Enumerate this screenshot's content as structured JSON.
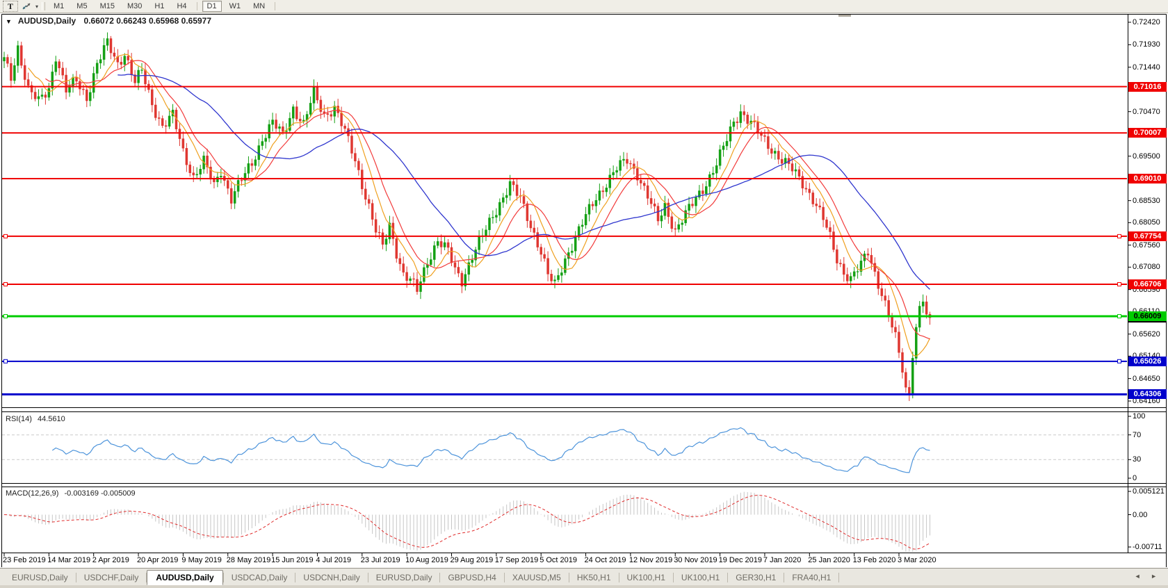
{
  "colors": {
    "candle_up": "#14A014",
    "candle_down": "#DF3731",
    "ma_fast": "#EFA01F",
    "ma_mid": "#F23B3B",
    "ma_slow": "#2F36CE",
    "rsi_line": "#4D94DB",
    "indicator_level_dash": "#C9C9C9",
    "macd_hist": "#C6C6C6",
    "macd_signal": "#E02B2B",
    "level_red": "#F00000",
    "level_green": "#00CC00",
    "level_blue": "#0000CC",
    "axis_text": "#000000",
    "toolbar_bg": "#F0EEE7",
    "tab_bg": "#E9E7E0"
  },
  "toolbar": {
    "text_tool": "T",
    "arrange_caret": "▾",
    "timeframes": [
      "M1",
      "M5",
      "M15",
      "M30",
      "H1",
      "H4",
      "D1",
      "W1",
      "MN"
    ],
    "active_timeframe": "D1",
    "group_break_after": "H4"
  },
  "chart_header": {
    "collapse_arrow": "▼",
    "symbol": "AUDUSD,Daily",
    "ohlc": "0.66072 0.66243 0.65968 0.65977"
  },
  "price_axis_ticks": [
    "0.72420",
    "0.71930",
    "0.71440",
    "0.70960",
    "0.70470",
    "0.69980",
    "0.69500",
    "0.69010",
    "0.68530",
    "0.68050",
    "0.67560",
    "0.67080",
    "0.66590",
    "0.66110",
    "0.65620",
    "0.65140",
    "0.64650",
    "0.64160"
  ],
  "levels": [
    {
      "label": "0.71016",
      "value": 0.71016,
      "color": "#F00000",
      "text_color": "#FFFFFF",
      "line_width": 2,
      "handles": false,
      "line": true
    },
    {
      "label": "0.70007",
      "value": 0.70007,
      "color": "#F00000",
      "text_color": "#FFFFFF",
      "line_width": 2,
      "handles": false,
      "line": true
    },
    {
      "label": "0.69010",
      "value": 0.6901,
      "color": "#F00000",
      "text_color": "#FFFFFF",
      "line_width": 2,
      "handles": false,
      "line": true
    },
    {
      "label": "0.67754",
      "value": 0.67754,
      "color": "#F00000",
      "text_color": "#FFFFFF",
      "line_width": 2,
      "handles": true,
      "line": true
    },
    {
      "label": "0.66706",
      "value": 0.66706,
      "color": "#F00000",
      "text_color": "#FFFFFF",
      "line_width": 2,
      "handles": true,
      "line": true
    },
    {
      "label": "0.65026",
      "value": 0.65026,
      "color": "#0000CC",
      "text_color": "#FFFFFF",
      "line_width": 2,
      "handles": true,
      "line": true
    },
    {
      "label": "0.64306",
      "value": 0.64306,
      "color": "#0000CC",
      "text_color": "#FFFFFF",
      "line_width": 3,
      "handles": false,
      "line": true
    },
    {
      "label": "0.65977",
      "value": 0.65977,
      "color": "#000000",
      "text_color": "#FFFFFF",
      "line_width": 0,
      "handles": false,
      "line": false
    },
    {
      "label": "0.66009",
      "value": 0.66009,
      "color": "#00CC00",
      "text_color": "#000000",
      "line_width": 3,
      "handles": true,
      "line": true
    }
  ],
  "rsi_panel": {
    "name": "RSI(14)",
    "value": "44.5610",
    "axis_labels": [
      {
        "label": "100",
        "v": 100
      },
      {
        "label": "70",
        "v": 70
      },
      {
        "label": "30",
        "v": 30
      },
      {
        "label": "0",
        "v": 0
      }
    ],
    "dashed_levels": [
      70,
      30
    ]
  },
  "macd_panel": {
    "name": "MACD(12,26,9)",
    "values": "-0.003169 -0.005009",
    "axis_labels": [
      {
        "label": "0.005121",
        "v": 0.005121
      },
      {
        "label": "0.00",
        "v": 0
      },
      {
        "label": "-0.00711",
        "v": -0.00711
      }
    ]
  },
  "date_labels": [
    "23 Feb 2019",
    "14 Mar 2019",
    "2 Apr 2019",
    "20 Apr 2019",
    "9 May 2019",
    "28 May 2019",
    "15 Jun 2019",
    "4 Jul 2019",
    "23 Jul 2019",
    "10 Aug 2019",
    "29 Aug 2019",
    "17 Sep 2019",
    "5 Oct 2019",
    "24 Oct 2019",
    "12 Nov 2019",
    "30 Nov 2019",
    "19 Dec 2019",
    "7 Jan 2020",
    "25 Jan 2020",
    "13 Feb 2020",
    "3 Mar 2020"
  ],
  "tab_bar": {
    "tabs": [
      "EURUSD,Daily",
      "USDCHF,Daily",
      "AUDUSD,Daily",
      "USDCAD,Daily",
      "USDCNH,Daily",
      "EURUSD,Daily",
      "GBPUSD,H4",
      "XAUUSD,M5",
      "HK50,H1",
      "UK100,H1",
      "UK100,H1",
      "GER30,H1",
      "FRA40,H1"
    ],
    "active_index": 2,
    "nav_arrows": [
      "◄",
      "►"
    ]
  },
  "chart_data": {
    "type": "candlestick",
    "symbol": "AUDUSD",
    "timeframe": "Daily",
    "ohlc_display": {
      "open": "0.66072",
      "high": "0.66243",
      "low": "0.65968",
      "close": "0.65977"
    },
    "ylim": [
      0.64024,
      0.7248
    ],
    "bar_count": 270,
    "bars_per_label": 13,
    "final_close": 0.65977,
    "crash_low": 0.6416,
    "x_labels": [
      "23 Feb 2019",
      "14 Mar 2019",
      "2 Apr 2019",
      "20 Apr 2019",
      "9 May 2019",
      "28 May 2019",
      "15 Jun 2019",
      "4 Jul 2019",
      "23 Jul 2019",
      "10 Aug 2019",
      "29 Aug 2019",
      "17 Sep 2019",
      "5 Oct 2019",
      "24 Oct 2019",
      "12 Nov 2019",
      "30 Nov 2019",
      "19 Dec 2019",
      "7 Jan 2020",
      "25 Jan 2020",
      "13 Feb 2020",
      "3 Mar 2020"
    ],
    "close_anchors": [
      [
        0,
        0.716
      ],
      [
        2,
        0.7122
      ],
      [
        4,
        0.7188
      ],
      [
        7,
        0.7095
      ],
      [
        10,
        0.7068
      ],
      [
        13,
        0.7098
      ],
      [
        15,
        0.717
      ],
      [
        18,
        0.7092
      ],
      [
        21,
        0.7115
      ],
      [
        24,
        0.7078
      ],
      [
        27,
        0.715
      ],
      [
        30,
        0.7196
      ],
      [
        33,
        0.7152
      ],
      [
        35,
        0.7175
      ],
      [
        38,
        0.711
      ],
      [
        40,
        0.7135
      ],
      [
        43,
        0.7065
      ],
      [
        46,
        0.7015
      ],
      [
        49,
        0.7038
      ],
      [
        52,
        0.696
      ],
      [
        55,
        0.6905
      ],
      [
        58,
        0.6938
      ],
      [
        61,
        0.6885
      ],
      [
        63,
        0.692
      ],
      [
        66,
        0.6858
      ],
      [
        69,
        0.6898
      ],
      [
        72,
        0.6935
      ],
      [
        75,
        0.6988
      ],
      [
        78,
        0.7022
      ],
      [
        81,
        0.6996
      ],
      [
        84,
        0.7056
      ],
      [
        87,
        0.7018
      ],
      [
        90,
        0.7088
      ],
      [
        93,
        0.704
      ],
      [
        96,
        0.7056
      ],
      [
        99,
        0.7002
      ],
      [
        102,
        0.6942
      ],
      [
        104,
        0.689
      ],
      [
        106,
        0.684
      ],
      [
        108,
        0.6786
      ],
      [
        110,
        0.6752
      ],
      [
        112,
        0.68
      ],
      [
        114,
        0.6742
      ],
      [
        116,
        0.6692
      ],
      [
        118,
        0.6678
      ],
      [
        120,
        0.6656
      ],
      [
        123,
        0.6722
      ],
      [
        126,
        0.6766
      ],
      [
        129,
        0.6742
      ],
      [
        131,
        0.6702
      ],
      [
        133,
        0.668
      ],
      [
        136,
        0.6732
      ],
      [
        139,
        0.6775
      ],
      [
        142,
        0.682
      ],
      [
        145,
        0.6862
      ],
      [
        147,
        0.6888
      ],
      [
        150,
        0.6856
      ],
      [
        153,
        0.68
      ],
      [
        156,
        0.6742
      ],
      [
        158,
        0.669
      ],
      [
        160,
        0.6668
      ],
      [
        163,
        0.6726
      ],
      [
        166,
        0.6772
      ],
      [
        169,
        0.6818
      ],
      [
        172,
        0.686
      ],
      [
        175,
        0.6892
      ],
      [
        178,
        0.6922
      ],
      [
        181,
        0.6942
      ],
      [
        184,
        0.6912
      ],
      [
        187,
        0.6862
      ],
      [
        190,
        0.6808
      ],
      [
        192,
        0.6842
      ],
      [
        195,
        0.6788
      ],
      [
        198,
        0.6822
      ],
      [
        201,
        0.6858
      ],
      [
        204,
        0.6892
      ],
      [
        207,
        0.6932
      ],
      [
        210,
        0.6986
      ],
      [
        212,
        0.7026
      ],
      [
        214,
        0.7048
      ],
      [
        217,
        0.7022
      ],
      [
        220,
        0.6992
      ],
      [
        223,
        0.6966
      ],
      [
        226,
        0.6942
      ],
      [
        229,
        0.692
      ],
      [
        232,
        0.6892
      ],
      [
        235,
        0.6858
      ],
      [
        238,
        0.6812
      ],
      [
        240,
        0.6772
      ],
      [
        242,
        0.6726
      ],
      [
        244,
        0.6698
      ],
      [
        246,
        0.6682
      ],
      [
        249,
        0.6712
      ],
      [
        251,
        0.6742
      ],
      [
        253,
        0.6696
      ],
      [
        255,
        0.6652
      ],
      [
        257,
        0.6602
      ],
      [
        259,
        0.6552
      ],
      [
        261,
        0.6486
      ],
      [
        262,
        0.6442
      ],
      [
        263,
        0.6436
      ],
      [
        264,
        0.6524
      ],
      [
        265,
        0.6576
      ],
      [
        266,
        0.6618
      ],
      [
        267,
        0.6638
      ],
      [
        268,
        0.6598
      ],
      [
        269,
        0.65977
      ]
    ],
    "moving_averages": [
      {
        "name": "fast",
        "window": 8,
        "color": "#EFA01F"
      },
      {
        "name": "mid",
        "window": 13,
        "color": "#F23B3B"
      },
      {
        "name": "slow",
        "window": 34,
        "color": "#2F36CE"
      }
    ],
    "rsi": {
      "period": 14,
      "last": 44.561,
      "levels": [
        70,
        30
      ],
      "range": [
        0,
        100
      ]
    },
    "macd": {
      "fast": 12,
      "slow": 26,
      "signal": 9,
      "last_main": -0.003169,
      "last_signal": -0.005009,
      "axis_max": 0.005121,
      "axis_min": -0.00711
    }
  }
}
